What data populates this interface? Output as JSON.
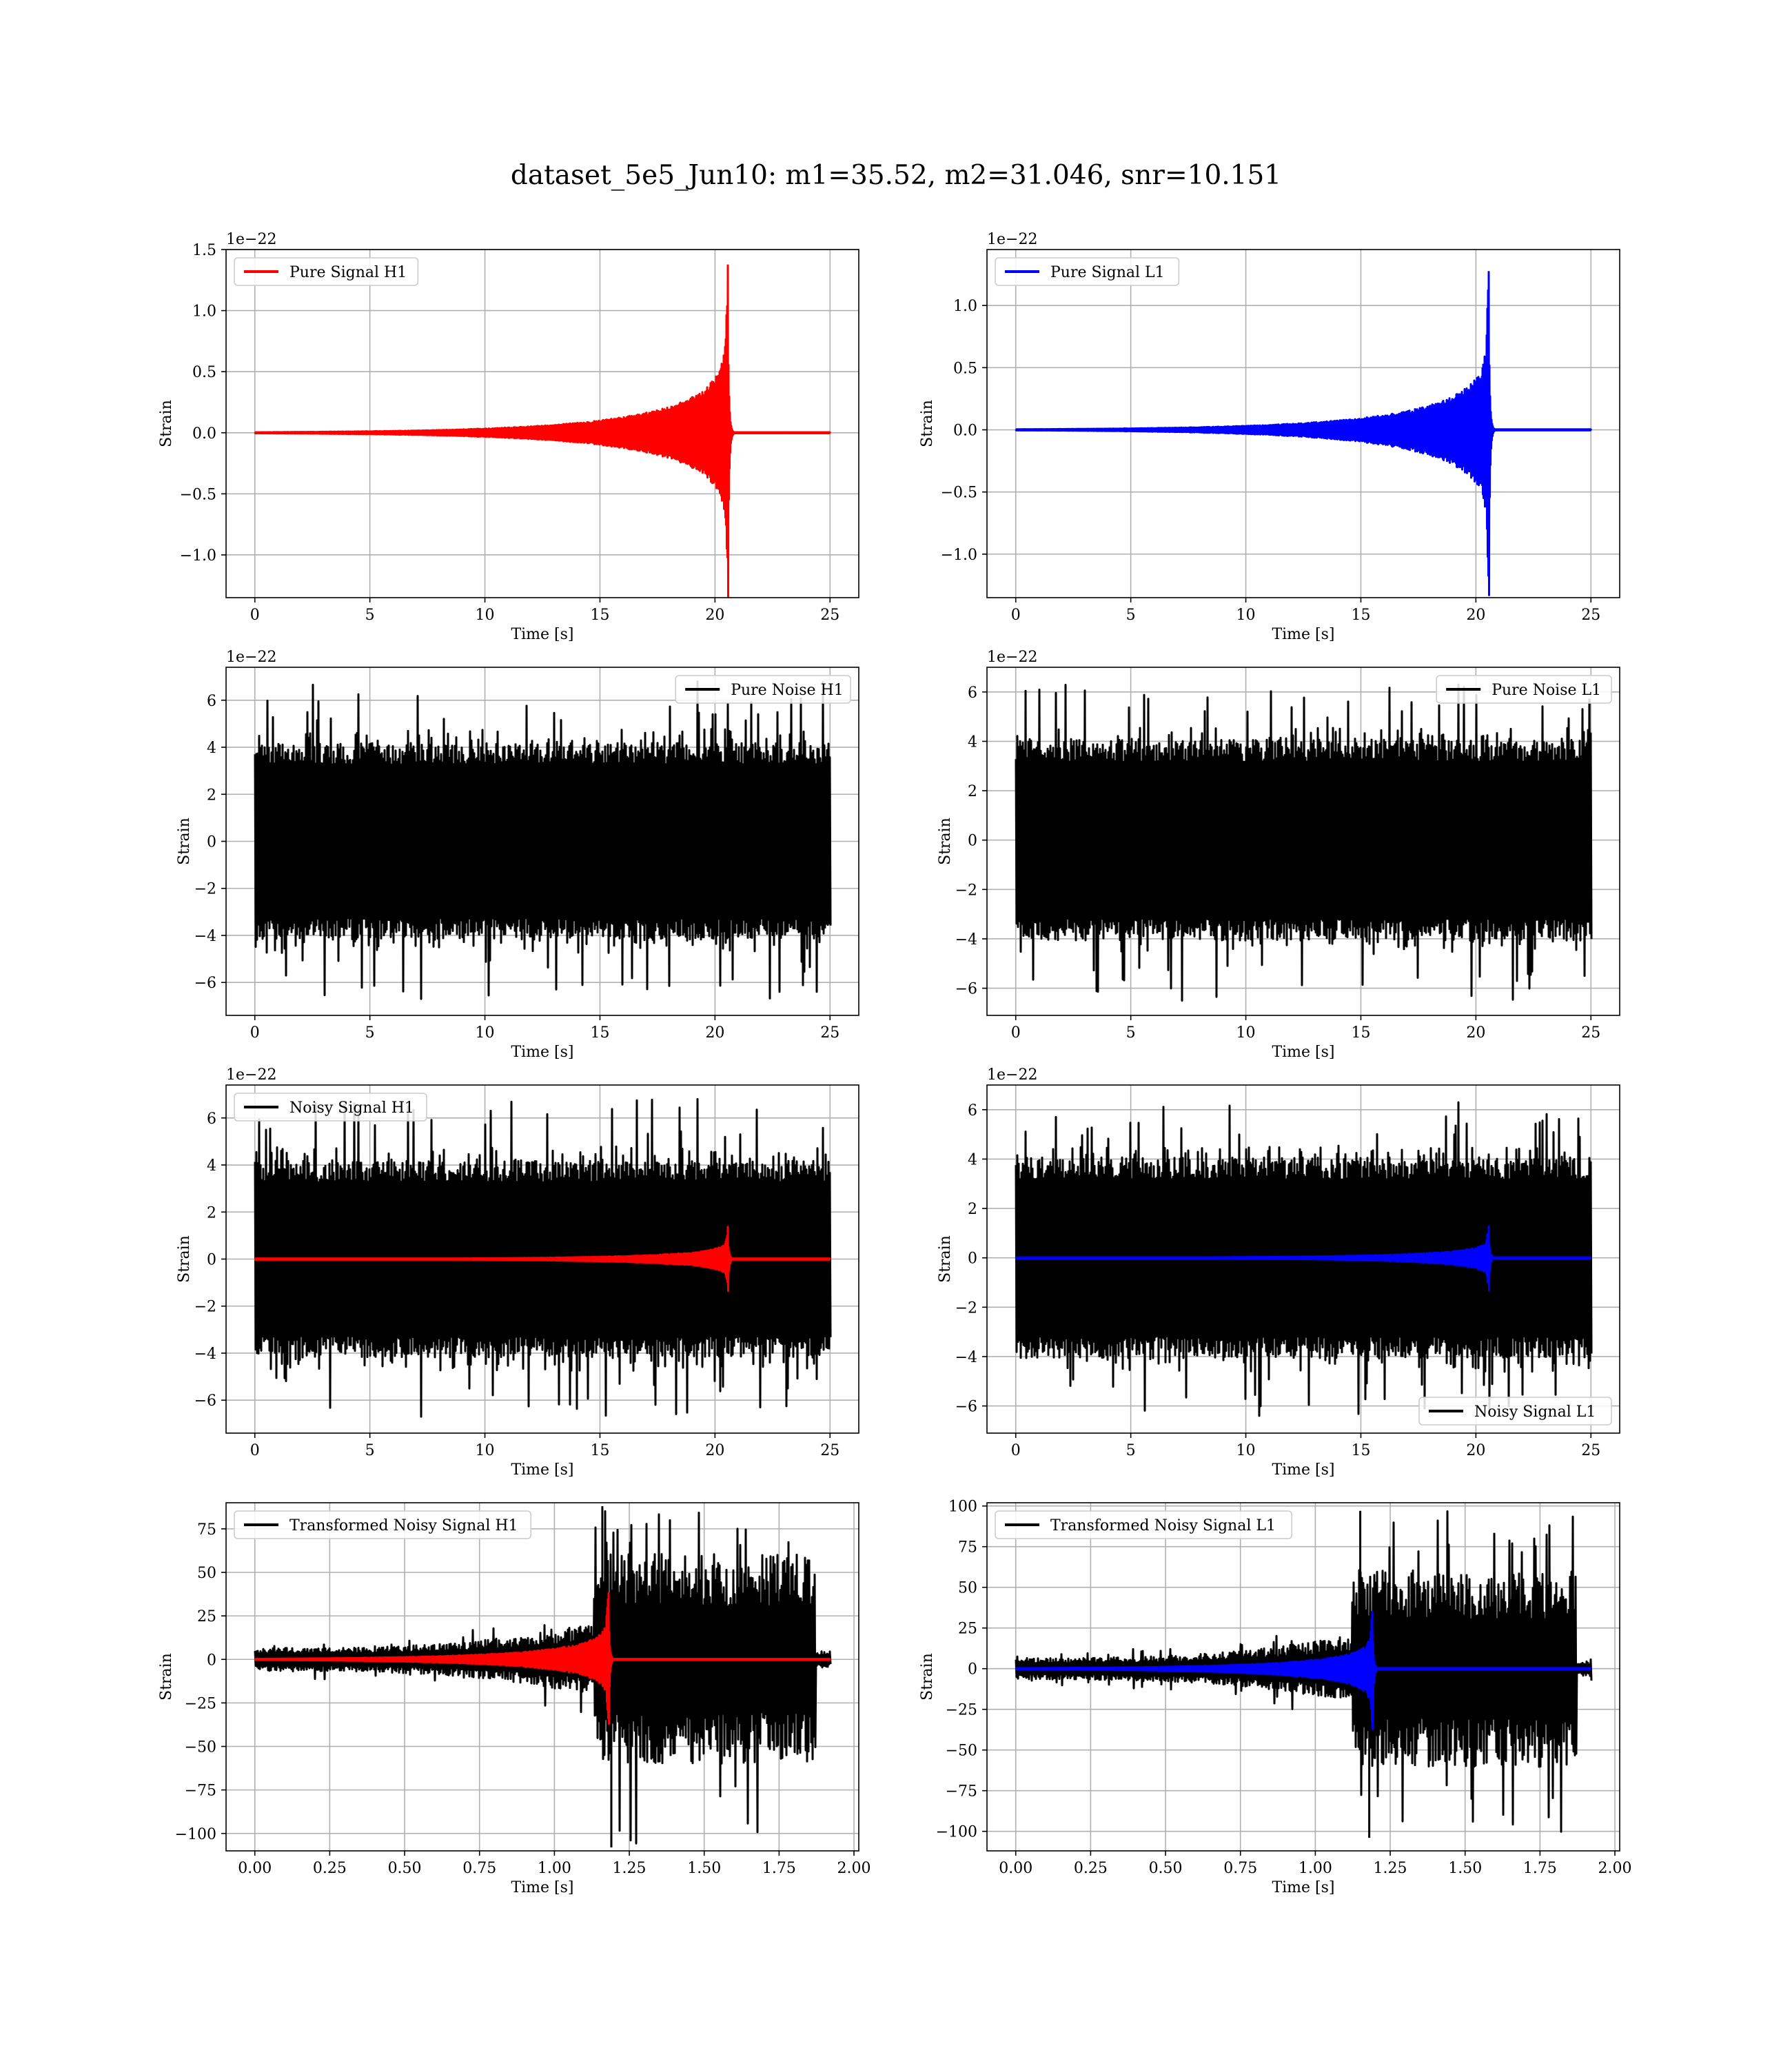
{
  "figure": {
    "suptitle": "dataset_5e5_Jun10: m1=35.52, m2=31.046, snr=10.151"
  },
  "colors": {
    "h1_signal": "#ff0000",
    "l1_signal": "#0000ff",
    "noise": "#000000",
    "grid": "#b0b0b0",
    "frame": "#000000"
  },
  "chart_data": [
    {
      "type": "line",
      "panel": "pure-signal-h1",
      "xlabel": "Time [s]",
      "ylabel": "Strain",
      "offset_text": "1e−22",
      "xlim": [
        -1.25,
        26.25
      ],
      "ylim": [
        -1.35,
        1.5
      ],
      "xticks": [
        0,
        5,
        10,
        15,
        20,
        25
      ],
      "xtick_labels": [
        "0",
        "5",
        "10",
        "15",
        "20",
        "25"
      ],
      "yticks": [
        -1.0,
        -0.5,
        0.0,
        0.5,
        1.0,
        1.5
      ],
      "ytick_labels": [
        "−1.0",
        "−0.5",
        "0.0",
        "0.5",
        "1.0",
        "1.5"
      ],
      "grid": true,
      "legend_position": "upper left",
      "series": [
        {
          "name": "Pure Signal H1",
          "color": "#ff0000",
          "kind": "chirp",
          "t_start": 0,
          "t_end": 25,
          "t_merger": 20.55,
          "peak_pos": 1.37,
          "peak_neg": -1.35
        }
      ]
    },
    {
      "type": "line",
      "panel": "pure-signal-l1",
      "xlabel": "Time [s]",
      "ylabel": "Strain",
      "offset_text": "1e−22",
      "xlim": [
        -1.25,
        26.25
      ],
      "ylim": [
        -1.35,
        1.45
      ],
      "xticks": [
        0,
        5,
        10,
        15,
        20,
        25
      ],
      "xtick_labels": [
        "0",
        "5",
        "10",
        "15",
        "20",
        "25"
      ],
      "yticks": [
        -1.0,
        -0.5,
        0.0,
        0.5,
        1.0
      ],
      "ytick_labels": [
        "−1.0",
        "−0.5",
        "0.0",
        "0.5",
        "1.0"
      ],
      "grid": true,
      "legend_position": "upper left",
      "series": [
        {
          "name": "Pure Signal L1",
          "color": "#0000ff",
          "kind": "chirp",
          "t_start": 0,
          "t_end": 25,
          "t_merger": 20.55,
          "peak_pos": 1.27,
          "peak_neg": -1.33
        }
      ]
    },
    {
      "type": "line",
      "panel": "pure-noise-h1",
      "xlabel": "Time [s]",
      "ylabel": "Strain",
      "offset_text": "1e−22",
      "xlim": [
        -1.25,
        26.25
      ],
      "ylim": [
        -7.4,
        7.4
      ],
      "xticks": [
        0,
        5,
        10,
        15,
        20,
        25
      ],
      "xtick_labels": [
        "0",
        "5",
        "10",
        "15",
        "20",
        "25"
      ],
      "yticks": [
        -6,
        -4,
        -2,
        0,
        2,
        4,
        6
      ],
      "ytick_labels": [
        "−6",
        "−4",
        "−2",
        "0",
        "2",
        "4",
        "6"
      ],
      "grid": true,
      "legend_position": "upper right",
      "series": [
        {
          "name": "Pure Noise H1",
          "color": "#000000",
          "kind": "noise",
          "t_start": 0,
          "t_end": 25,
          "band": 3.7,
          "max": 6.8,
          "min": -6.7
        }
      ]
    },
    {
      "type": "line",
      "panel": "pure-noise-l1",
      "xlabel": "Time [s]",
      "ylabel": "Strain",
      "offset_text": "1e−22",
      "xlim": [
        -1.25,
        26.25
      ],
      "ylim": [
        -7.1,
        7.0
      ],
      "xticks": [
        0,
        5,
        10,
        15,
        20,
        25
      ],
      "xtick_labels": [
        "0",
        "5",
        "10",
        "15",
        "20",
        "25"
      ],
      "yticks": [
        -6,
        -4,
        -2,
        0,
        2,
        4,
        6
      ],
      "ytick_labels": [
        "−6",
        "−4",
        "−2",
        "0",
        "2",
        "4",
        "6"
      ],
      "grid": true,
      "legend_position": "upper right",
      "series": [
        {
          "name": "Pure Noise L1",
          "color": "#000000",
          "kind": "noise",
          "t_start": 0,
          "t_end": 25,
          "band": 3.6,
          "max": 6.3,
          "min": -6.5
        }
      ]
    },
    {
      "type": "line",
      "panel": "noisy-signal-h1",
      "xlabel": "Time [s]",
      "ylabel": "Strain",
      "offset_text": "1e−22",
      "xlim": [
        -1.25,
        26.25
      ],
      "ylim": [
        -7.4,
        7.4
      ],
      "xticks": [
        0,
        5,
        10,
        15,
        20,
        25
      ],
      "xtick_labels": [
        "0",
        "5",
        "10",
        "15",
        "20",
        "25"
      ],
      "yticks": [
        -6,
        -4,
        -2,
        0,
        2,
        4,
        6
      ],
      "ytick_labels": [
        "−6",
        "−4",
        "−2",
        "0",
        "2",
        "4",
        "6"
      ],
      "grid": true,
      "legend_position": "upper left",
      "series": [
        {
          "name": "Noisy Signal H1",
          "color": "#000000",
          "kind": "noise",
          "t_start": 0,
          "t_end": 25,
          "band": 3.7,
          "max": 6.8,
          "min": -6.7
        },
        {
          "color": "#ff0000",
          "kind": "chirp",
          "t_start": 0,
          "t_end": 25,
          "t_merger": 20.55,
          "peak_pos": 1.37,
          "peak_neg": -1.35
        }
      ]
    },
    {
      "type": "line",
      "panel": "noisy-signal-l1",
      "xlabel": "Time [s]",
      "ylabel": "Strain",
      "offset_text": "1e−22",
      "xlim": [
        -1.25,
        26.25
      ],
      "ylim": [
        -7.1,
        7.0
      ],
      "xticks": [
        0,
        5,
        10,
        15,
        20,
        25
      ],
      "xtick_labels": [
        "0",
        "5",
        "10",
        "15",
        "20",
        "25"
      ],
      "yticks": [
        -6,
        -4,
        -2,
        0,
        2,
        4,
        6
      ],
      "ytick_labels": [
        "−6",
        "−4",
        "−2",
        "0",
        "2",
        "4",
        "6"
      ],
      "grid": true,
      "legend_position": "lower right",
      "series": [
        {
          "name": "Noisy Signal L1",
          "color": "#000000",
          "kind": "noise",
          "t_start": 0,
          "t_end": 25,
          "band": 3.6,
          "max": 6.3,
          "min": -6.5
        },
        {
          "color": "#0000ff",
          "kind": "chirp",
          "t_start": 0,
          "t_end": 25,
          "t_merger": 20.55,
          "peak_pos": 1.27,
          "peak_neg": -1.33
        }
      ]
    },
    {
      "type": "line",
      "panel": "transformed-noisy-signal-h1",
      "xlabel": "Time [s]",
      "ylabel": "Strain",
      "xlim": [
        -0.096,
        2.016
      ],
      "ylim": [
        -110,
        90
      ],
      "xticks": [
        0.0,
        0.25,
        0.5,
        0.75,
        1.0,
        1.25,
        1.5,
        1.75,
        2.0
      ],
      "xtick_labels": [
        "0.00",
        "0.25",
        "0.50",
        "0.75",
        "1.00",
        "1.25",
        "1.50",
        "1.75",
        "2.00"
      ],
      "yticks": [
        -100,
        -75,
        -50,
        -25,
        0,
        25,
        50,
        75
      ],
      "ytick_labels": [
        "−100",
        "−75",
        "−50",
        "−25",
        "0",
        "25",
        "50",
        "75"
      ],
      "grid": true,
      "legend_position": "upper left",
      "series": [
        {
          "name": "Transformed Noisy Signal H1",
          "color": "#000000",
          "kind": "whitened",
          "t_start": 0,
          "t_end": 1.92,
          "t_jump": 1.13,
          "t_cut": 1.87,
          "band_early": 6,
          "band_late": 55,
          "max": 88,
          "min": -108
        },
        {
          "color": "#ff0000",
          "kind": "chirp",
          "t_start": 0,
          "t_end": 1.92,
          "t_merger": 1.18,
          "peak_pos": 38,
          "peak_neg": -37
        }
      ]
    },
    {
      "type": "line",
      "panel": "transformed-noisy-signal-l1",
      "xlabel": "Time [s]",
      "ylabel": "Strain",
      "xlim": [
        -0.096,
        2.016
      ],
      "ylim": [
        -112,
        102
      ],
      "xticks": [
        0.0,
        0.25,
        0.5,
        0.75,
        1.0,
        1.25,
        1.5,
        1.75,
        2.0
      ],
      "xtick_labels": [
        "0.00",
        "0.25",
        "0.50",
        "0.75",
        "1.00",
        "1.25",
        "1.50",
        "1.75",
        "2.00"
      ],
      "yticks": [
        -100,
        -75,
        -50,
        -25,
        0,
        25,
        50,
        75,
        100
      ],
      "ytick_labels": [
        "−100",
        "−75",
        "−50",
        "−25",
        "0",
        "25",
        "50",
        "75",
        "100"
      ],
      "grid": true,
      "legend_position": "upper left",
      "series": [
        {
          "name": "Transformed Noisy Signal L1",
          "color": "#000000",
          "kind": "whitened",
          "t_start": 0,
          "t_end": 1.92,
          "t_jump": 1.12,
          "t_cut": 1.87,
          "band_early": 6,
          "band_late": 55,
          "max": 97,
          "min": -104
        },
        {
          "color": "#0000ff",
          "kind": "chirp",
          "t_start": 0,
          "t_end": 1.92,
          "t_merger": 1.19,
          "peak_pos": 35,
          "peak_neg": -37
        }
      ]
    }
  ]
}
